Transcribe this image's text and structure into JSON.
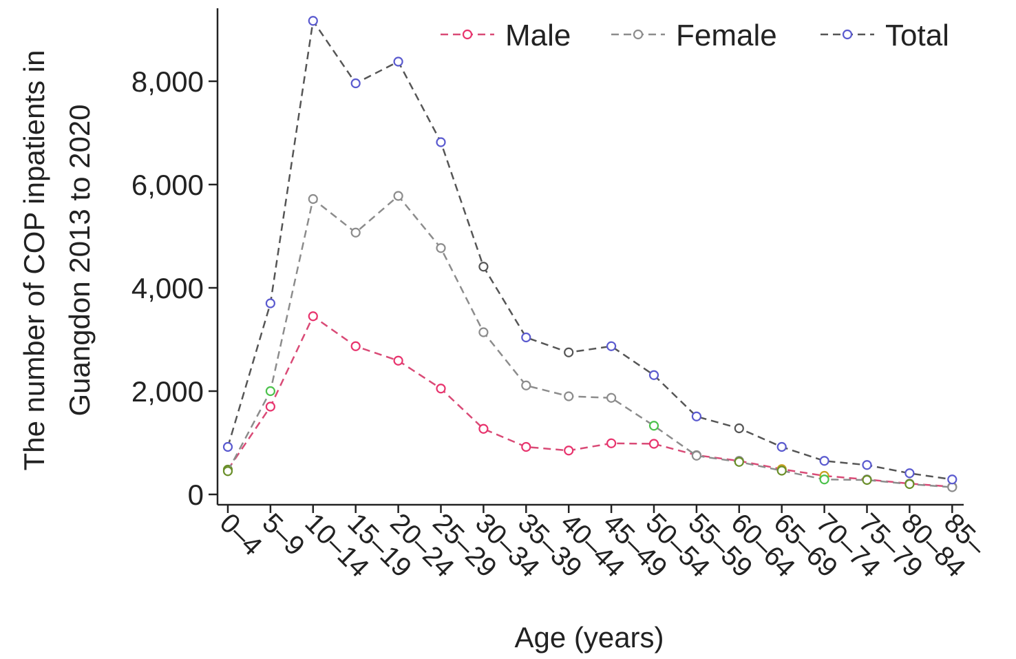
{
  "chart_data": {
    "type": "line",
    "title": "",
    "xlabel": "Age (years)",
    "ylabel_line1": "The number of COP inpatients in",
    "ylabel_line2": "Guangdon 2013 to 2020",
    "categories": [
      "0–4",
      "5–9",
      "10–14",
      "15–19",
      "20–24",
      "25–29",
      "30–34",
      "35–39",
      "40–44",
      "45–49",
      "50–54",
      "55–59",
      "60–64",
      "65–69",
      "70–74",
      "75–79",
      "80–84",
      "85–"
    ],
    "ylim": [
      0,
      9300
    ],
    "yticks": [
      {
        "value": 0,
        "label": "0"
      },
      {
        "value": 2000,
        "label": "2,000"
      },
      {
        "value": 4000,
        "label": "4,000"
      },
      {
        "value": 6000,
        "label": "6,000"
      },
      {
        "value": 8000,
        "label": "8,000"
      }
    ],
    "grid": false,
    "legend_position": "top-right",
    "series": [
      {
        "name": "Male",
        "color": "#e8336d",
        "values": [
          480,
          1700,
          3450,
          2870,
          2590,
          2050,
          1270,
          920,
          850,
          990,
          980,
          760,
          650,
          490,
          360,
          290,
          210,
          150
        ]
      },
      {
        "name": "Female",
        "color": "#8c8c8c",
        "values": [
          450,
          2000,
          5720,
          5070,
          5780,
          4770,
          3140,
          2110,
          1900,
          1870,
          1330,
          750,
          630,
          460,
          290,
          280,
          200,
          140
        ]
      },
      {
        "name": "Total",
        "color": "#5a5acf",
        "values": [
          920,
          3700,
          9170,
          7960,
          8380,
          6820,
          4410,
          3040,
          2750,
          2870,
          2310,
          1510,
          1280,
          920,
          650,
          570,
          410,
          290
        ]
      }
    ],
    "marker_colors": {
      "Male": [
        "#6a8f2a",
        "#e8336d",
        "#e8336d",
        "#e8336d",
        "#e8336d",
        "#e8336d",
        "#e8336d",
        "#e8336d",
        "#e8336d",
        "#e8336d",
        "#e8336d",
        "#8c8c8c",
        "#8c8c8c",
        "#c8a020",
        "#c8a020",
        "#8c8c8c",
        "#8c8c8c",
        "#8c8c8c"
      ],
      "Female": [
        "#6a8f2a",
        "#4cc24c",
        "#8c8c8c",
        "#8c8c8c",
        "#8c8c8c",
        "#8c8c8c",
        "#8c8c8c",
        "#8c8c8c",
        "#8c8c8c",
        "#8c8c8c",
        "#4cc24c",
        "#8c8c8c",
        "#6a8f2a",
        "#6a8f2a",
        "#4cc24c",
        "#6a8f2a",
        "#6a8f2a",
        "#8c8c8c"
      ],
      "Total": [
        "#5a5acf",
        "#5a5acf",
        "#5a5acf",
        "#5a5acf",
        "#5a5acf",
        "#5a5acf",
        "#555555",
        "#5a5acf",
        "#555555",
        "#5a5acf",
        "#5a5acf",
        "#5a5acf",
        "#555555",
        "#5a5acf",
        "#5a5acf",
        "#5a5acf",
        "#5a5acf",
        "#5a5acf"
      ]
    },
    "line_colors": {
      "Male": "#d94a76",
      "Female": "#8c8c8c",
      "Total": "#555555"
    }
  }
}
